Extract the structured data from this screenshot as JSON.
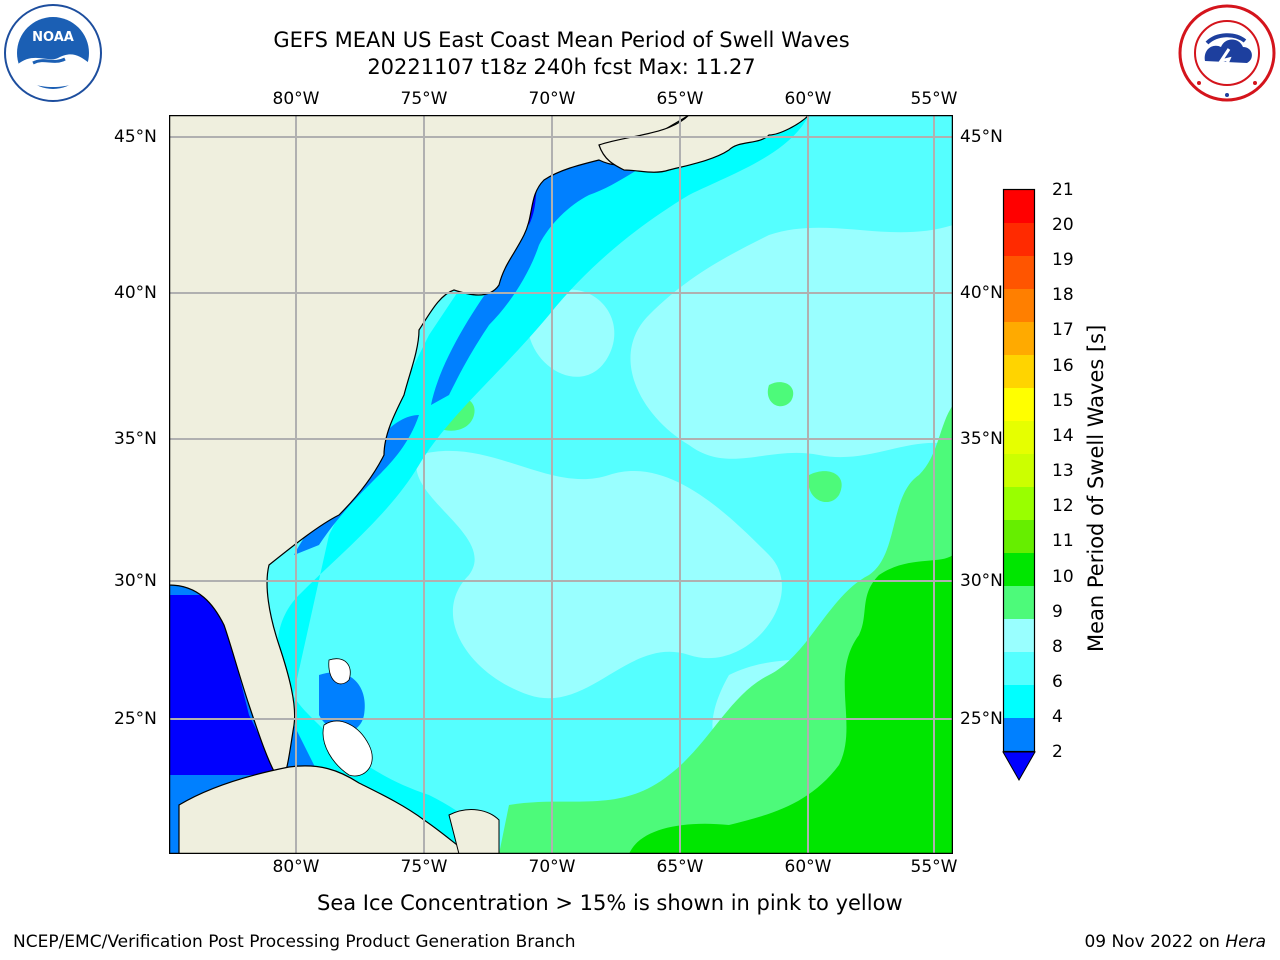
{
  "title_line1": "GEFS MEAN US East Coast Mean Period of Swell Waves",
  "title_line2": "20221107 t18z 240h fcst   Max: 11.27",
  "lon_labels": [
    "80°W",
    "75°W",
    "70°W",
    "65°W",
    "60°W",
    "55°W"
  ],
  "lat_labels": [
    "45°N",
    "40°N",
    "35°N",
    "30°N",
    "25°N"
  ],
  "colorbar": {
    "title": "Mean Period of Swell Waves [s]",
    "ticks": [
      "21",
      "20",
      "19",
      "18",
      "17",
      "16",
      "15",
      "14",
      "13",
      "12",
      "11",
      "10",
      "9",
      "8",
      "6",
      "4",
      "2"
    ],
    "colors": [
      "#ff0000",
      "#ff2a00",
      "#ff5500",
      "#ff7f00",
      "#ffaa00",
      "#ffd400",
      "#ffff00",
      "#e6ff00",
      "#ccff00",
      "#99ff00",
      "#66ee00",
      "#00e600",
      "#4dfa7a",
      "#99ffff",
      "#55ffff",
      "#00ffff",
      "#0080ff"
    ],
    "underflow_color": "#0000ff"
  },
  "note": "Sea Ice Concentration > 15% is shown in pink to yellow",
  "footer_left": "NCEP/EMC/Verification Post Processing Product Generation Branch",
  "footer_date": "09 Nov 2022 on",
  "footer_machine": "Hera",
  "logo_left": "NOAA",
  "colors": {
    "land": "#efefde",
    "grid": "#b0b0b0"
  },
  "icons": {
    "left_logo": "noaa-logo-icon",
    "right_logo": "nws-logo-icon"
  }
}
